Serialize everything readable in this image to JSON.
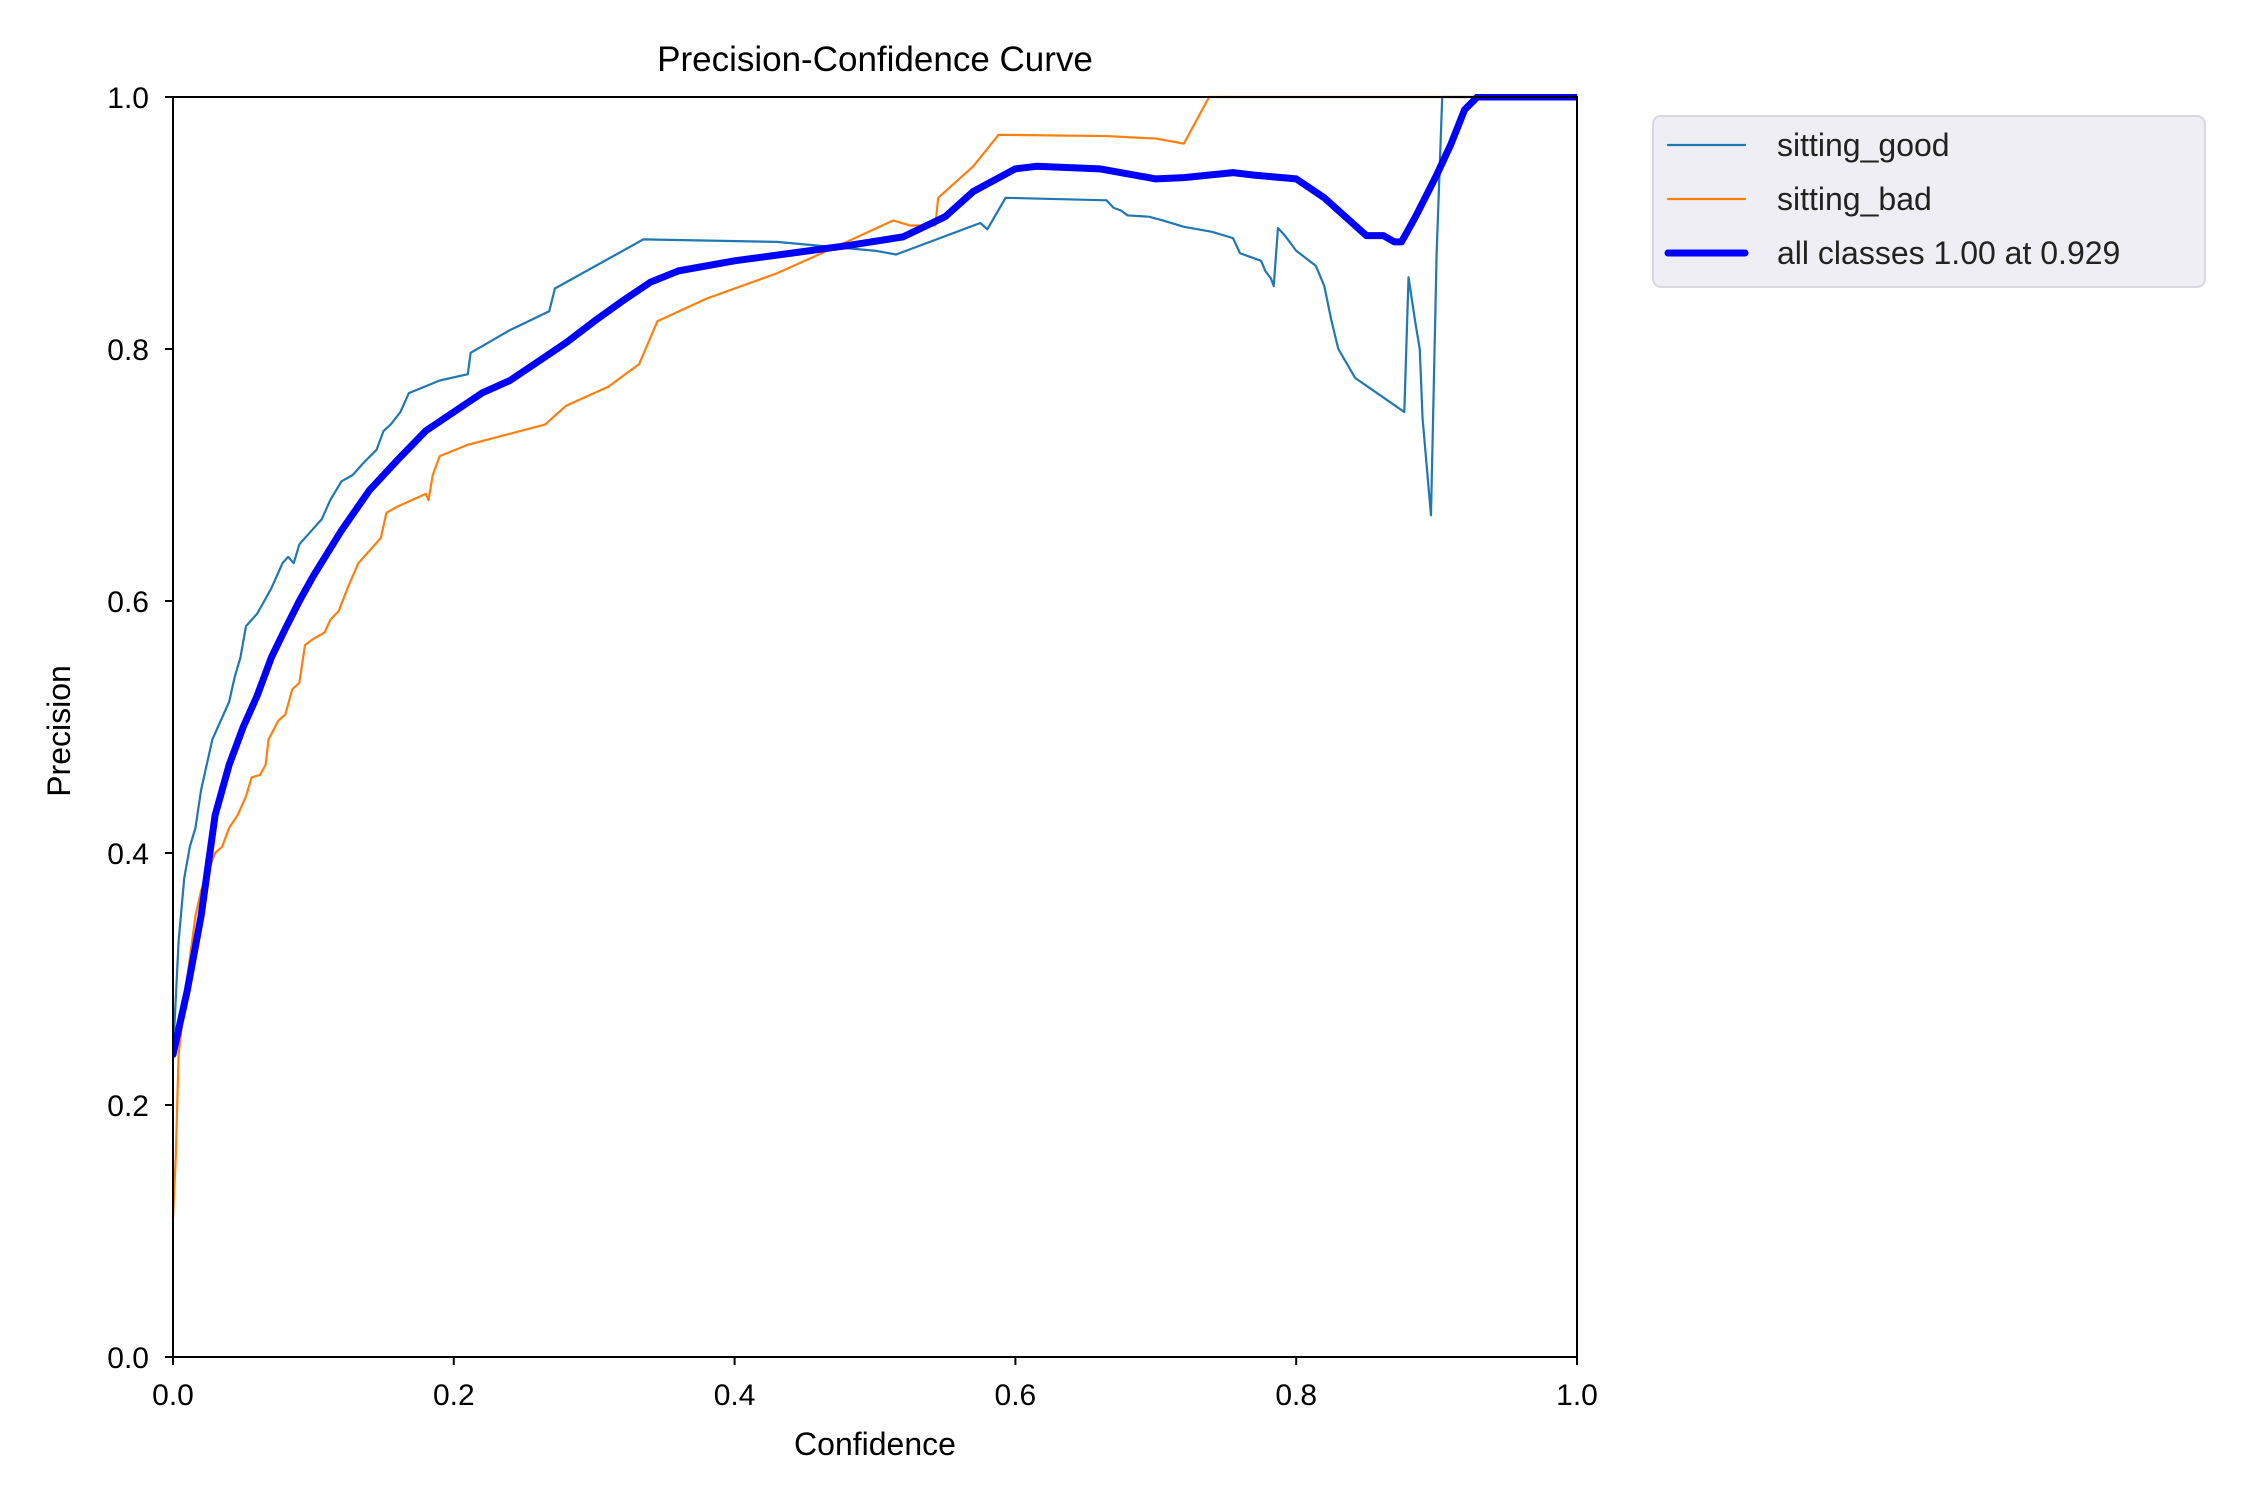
{
  "chart_data": {
    "type": "line",
    "title": "Precision-Confidence Curve",
    "xlabel": "Confidence",
    "ylabel": "Precision",
    "xlim": [
      0,
      1
    ],
    "ylim": [
      0,
      1
    ],
    "xticks": [
      "0.0",
      "0.2",
      "0.4",
      "0.6",
      "0.8",
      "1.0"
    ],
    "yticks": [
      "0.0",
      "0.2",
      "0.4",
      "0.6",
      "0.8",
      "1.0"
    ],
    "grid": false,
    "legend_position": "outside-top-right",
    "series": [
      {
        "name": "sitting_good",
        "color": "#1f77b4",
        "width": "thin",
        "points": [
          [
            0.0,
            0.24
          ],
          [
            0.004,
            0.33
          ],
          [
            0.008,
            0.38
          ],
          [
            0.012,
            0.405
          ],
          [
            0.016,
            0.42
          ],
          [
            0.02,
            0.45
          ],
          [
            0.024,
            0.47
          ],
          [
            0.028,
            0.49
          ],
          [
            0.032,
            0.5
          ],
          [
            0.036,
            0.51
          ],
          [
            0.04,
            0.52
          ],
          [
            0.044,
            0.54
          ],
          [
            0.048,
            0.555
          ],
          [
            0.052,
            0.58
          ],
          [
            0.056,
            0.585
          ],
          [
            0.06,
            0.59
          ],
          [
            0.065,
            0.6
          ],
          [
            0.07,
            0.61
          ],
          [
            0.074,
            0.62
          ],
          [
            0.078,
            0.63
          ],
          [
            0.082,
            0.635
          ],
          [
            0.086,
            0.63
          ],
          [
            0.09,
            0.645
          ],
          [
            0.098,
            0.655
          ],
          [
            0.106,
            0.665
          ],
          [
            0.112,
            0.68
          ],
          [
            0.12,
            0.695
          ],
          [
            0.128,
            0.7
          ],
          [
            0.136,
            0.71
          ],
          [
            0.145,
            0.72
          ],
          [
            0.15,
            0.735
          ],
          [
            0.155,
            0.74
          ],
          [
            0.162,
            0.75
          ],
          [
            0.168,
            0.765
          ],
          [
            0.19,
            0.775
          ],
          [
            0.21,
            0.78
          ],
          [
            0.212,
            0.797
          ],
          [
            0.24,
            0.815
          ],
          [
            0.268,
            0.83
          ],
          [
            0.272,
            0.848
          ],
          [
            0.335,
            0.887
          ],
          [
            0.43,
            0.885
          ],
          [
            0.5,
            0.878
          ],
          [
            0.515,
            0.875
          ],
          [
            0.575,
            0.9
          ],
          [
            0.58,
            0.895
          ],
          [
            0.593,
            0.92
          ],
          [
            0.665,
            0.918
          ],
          [
            0.67,
            0.912
          ],
          [
            0.675,
            0.91
          ],
          [
            0.68,
            0.906
          ],
          [
            0.695,
            0.905
          ],
          [
            0.705,
            0.902
          ],
          [
            0.72,
            0.897
          ],
          [
            0.74,
            0.893
          ],
          [
            0.755,
            0.888
          ],
          [
            0.76,
            0.876
          ],
          [
            0.775,
            0.87
          ],
          [
            0.778,
            0.862
          ],
          [
            0.782,
            0.856
          ],
          [
            0.784,
            0.85
          ],
          [
            0.787,
            0.896
          ],
          [
            0.792,
            0.89
          ],
          [
            0.8,
            0.878
          ],
          [
            0.814,
            0.866
          ],
          [
            0.82,
            0.85
          ],
          [
            0.825,
            0.823
          ],
          [
            0.83,
            0.8
          ],
          [
            0.842,
            0.777
          ],
          [
            0.877,
            0.75
          ],
          [
            0.88,
            0.857
          ],
          [
            0.885,
            0.82
          ],
          [
            0.888,
            0.8
          ],
          [
            0.89,
            0.745
          ],
          [
            0.896,
            0.668
          ],
          [
            0.9,
            0.875
          ],
          [
            0.904,
            1.0
          ],
          [
            1.0,
            1.0
          ]
        ]
      },
      {
        "name": "sitting_bad",
        "color": "#ff7f0e",
        "width": "thin",
        "points": [
          [
            0.0,
            0.11
          ],
          [
            0.002,
            0.16
          ],
          [
            0.004,
            0.24
          ],
          [
            0.01,
            0.3
          ],
          [
            0.016,
            0.35
          ],
          [
            0.02,
            0.37
          ],
          [
            0.025,
            0.385
          ],
          [
            0.03,
            0.4
          ],
          [
            0.035,
            0.405
          ],
          [
            0.04,
            0.42
          ],
          [
            0.046,
            0.43
          ],
          [
            0.052,
            0.445
          ],
          [
            0.056,
            0.46
          ],
          [
            0.062,
            0.462
          ],
          [
            0.066,
            0.47
          ],
          [
            0.068,
            0.49
          ],
          [
            0.075,
            0.505
          ],
          [
            0.08,
            0.51
          ],
          [
            0.085,
            0.53
          ],
          [
            0.09,
            0.535
          ],
          [
            0.094,
            0.565
          ],
          [
            0.1,
            0.57
          ],
          [
            0.108,
            0.575
          ],
          [
            0.112,
            0.585
          ],
          [
            0.118,
            0.592
          ],
          [
            0.125,
            0.612
          ],
          [
            0.132,
            0.63
          ],
          [
            0.14,
            0.64
          ],
          [
            0.148,
            0.65
          ],
          [
            0.152,
            0.67
          ],
          [
            0.16,
            0.675
          ],
          [
            0.18,
            0.685
          ],
          [
            0.182,
            0.68
          ],
          [
            0.185,
            0.7
          ],
          [
            0.19,
            0.715
          ],
          [
            0.21,
            0.724
          ],
          [
            0.265,
            0.74
          ],
          [
            0.28,
            0.755
          ],
          [
            0.31,
            0.77
          ],
          [
            0.332,
            0.788
          ],
          [
            0.345,
            0.822
          ],
          [
            0.38,
            0.84
          ],
          [
            0.43,
            0.86
          ],
          [
            0.47,
            0.88
          ],
          [
            0.513,
            0.902
          ],
          [
            0.525,
            0.898
          ],
          [
            0.543,
            0.898
          ],
          [
            0.545,
            0.92
          ],
          [
            0.57,
            0.945
          ],
          [
            0.588,
            0.97
          ],
          [
            0.665,
            0.969
          ],
          [
            0.7,
            0.967
          ],
          [
            0.71,
            0.965
          ],
          [
            0.72,
            0.963
          ],
          [
            0.738,
            1.0
          ],
          [
            1.0,
            1.0
          ]
        ]
      },
      {
        "name": "all classes 1.00 at 0.929",
        "color": "#0000ff",
        "width": "thick",
        "points": [
          [
            0.0,
            0.24
          ],
          [
            0.01,
            0.29
          ],
          [
            0.02,
            0.35
          ],
          [
            0.03,
            0.43
          ],
          [
            0.04,
            0.47
          ],
          [
            0.05,
            0.5
          ],
          [
            0.06,
            0.525
          ],
          [
            0.07,
            0.555
          ],
          [
            0.08,
            0.578
          ],
          [
            0.09,
            0.6
          ],
          [
            0.1,
            0.62
          ],
          [
            0.12,
            0.656
          ],
          [
            0.14,
            0.688
          ],
          [
            0.16,
            0.712
          ],
          [
            0.18,
            0.735
          ],
          [
            0.2,
            0.75
          ],
          [
            0.22,
            0.765
          ],
          [
            0.24,
            0.775
          ],
          [
            0.26,
            0.79
          ],
          [
            0.28,
            0.805
          ],
          [
            0.3,
            0.822
          ],
          [
            0.32,
            0.838
          ],
          [
            0.34,
            0.853
          ],
          [
            0.36,
            0.862
          ],
          [
            0.4,
            0.87
          ],
          [
            0.44,
            0.876
          ],
          [
            0.48,
            0.882
          ],
          [
            0.52,
            0.889
          ],
          [
            0.55,
            0.905
          ],
          [
            0.57,
            0.925
          ],
          [
            0.6,
            0.943
          ],
          [
            0.615,
            0.945
          ],
          [
            0.66,
            0.943
          ],
          [
            0.7,
            0.935
          ],
          [
            0.72,
            0.936
          ],
          [
            0.755,
            0.94
          ],
          [
            0.77,
            0.938
          ],
          [
            0.8,
            0.935
          ],
          [
            0.82,
            0.92
          ],
          [
            0.85,
            0.89
          ],
          [
            0.862,
            0.89
          ],
          [
            0.87,
            0.885
          ],
          [
            0.875,
            0.885
          ],
          [
            0.885,
            0.905
          ],
          [
            0.9,
            0.938
          ],
          [
            0.91,
            0.962
          ],
          [
            0.92,
            0.99
          ],
          [
            0.929,
            1.0
          ],
          [
            1.0,
            1.0
          ]
        ]
      }
    ]
  }
}
